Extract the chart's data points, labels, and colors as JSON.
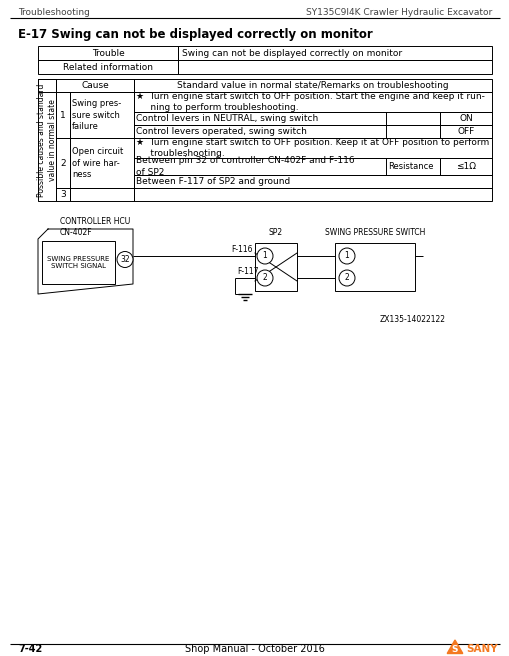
{
  "header_left": "Troubleshooting",
  "header_right": "SY135C9I4K Crawler Hydraulic Excavator",
  "section_title": "E-17 Swing can not be displayed correctly on monitor",
  "trouble_label": "Trouble",
  "trouble_value": "Swing can not be displayed correctly on monitor",
  "related_info": "Related information",
  "col_cause": "Cause",
  "col_standard": "Standard value in normal state/Remarks on troubleshooting",
  "row_vertical_label": "Possible causes and standard\nvalue in normal state",
  "rows": [
    {
      "num": "1",
      "cause": "Swing pres-\nsure switch\nfailure",
      "items": [
        {
          "text": "★  Turn engine start switch to OFF position. Start the engine and keep it run-\n     ning to perform troubleshooting.",
          "value": "",
          "label": ""
        },
        {
          "text": "Control levers in NEUTRAL, swing switch",
          "value": "ON",
          "label": ""
        },
        {
          "text": "Control levers operated, swing switch",
          "value": "OFF",
          "label": ""
        }
      ]
    },
    {
      "num": "2",
      "cause": "Open circuit\nof wire har-\nness",
      "items": [
        {
          "text": "★  Turn engine start switch to OFF position. Keep it at OFF position to perform\n     troubleshooting.",
          "value": "",
          "label": ""
        },
        {
          "text": "Between pin 32 of controller CN-402F and F-116\nof SP2",
          "value": "≤1Ω",
          "label": "Resistance"
        },
        {
          "text": "Between F-117 of SP2 and ground",
          "value": "",
          "label": ""
        }
      ]
    },
    {
      "num": "3",
      "cause": "",
      "items": []
    }
  ],
  "diagram_label_controller": "CONTROLLER HCU\nCN-402F",
  "diagram_label_sp2": "SP2",
  "diagram_label_switch": "SWING PRESSURE SWITCH",
  "diagram_signal_label": "SWING PRESSURE\nSWITCH SIGNAL",
  "diagram_pin": "32",
  "diagram_wire1": "F-116",
  "diagram_wire2": "F-117",
  "diagram_ref": "ZX135-14022122",
  "footer_page": "7-42",
  "footer_center": "Shop Manual - October 2016",
  "sany_logo": "SANY",
  "bg_color": "#ffffff",
  "text_color": "#000000",
  "orange_color": "#f47920"
}
